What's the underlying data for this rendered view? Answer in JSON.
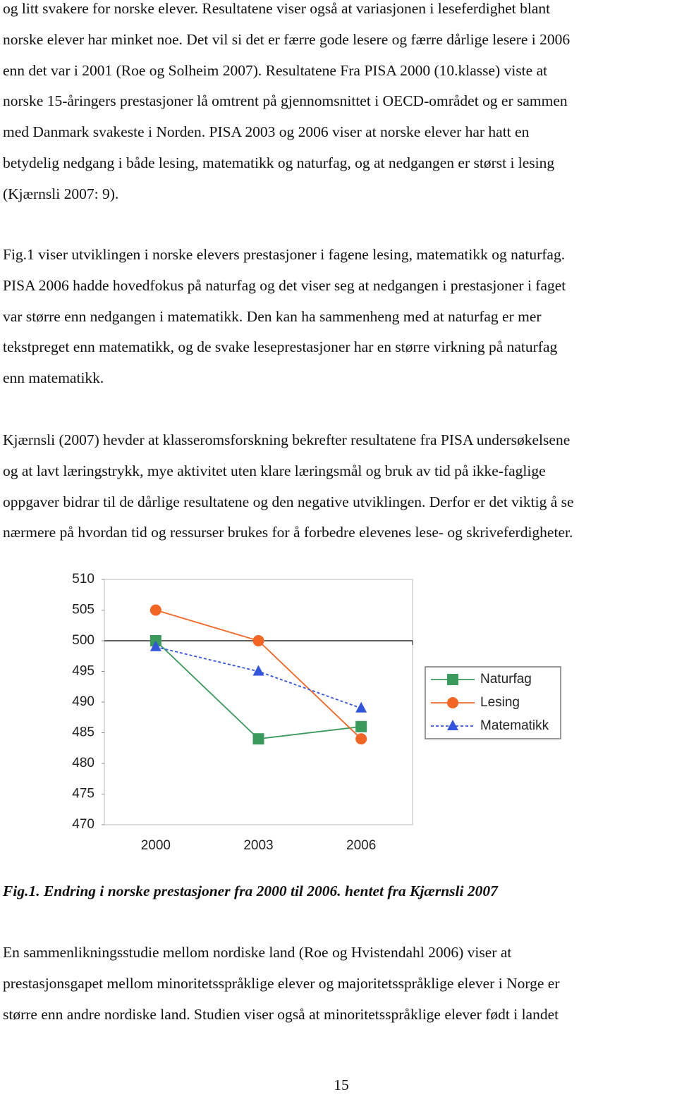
{
  "paragraphs": [
    {
      "lines": [
        "og litt svakere for norske elever. Resultatene viser også at variasjonen i leseferdighet blant",
        "norske elever har minket noe. Det vil si det er færre gode lesere og færre dårlige lesere i 2006",
        "enn det var i 2001 (Roe og Solheim 2007). Resultatene Fra PISA 2000 (10.klasse) viste at",
        "norske 15-åringers prestasjoner lå omtrent på gjennomsnittet i OECD-området og er sammen",
        "med Danmark svakeste i Norden. PISA 2003 og 2006 viser at norske elever har hatt en",
        "betydelig nedgang i både lesing, matematikk og naturfag, og at nedgangen er størst i lesing",
        "(Kjærnsli 2007: 9)."
      ]
    },
    {
      "lines": [
        "Fig.1 viser utviklingen i norske elevers prestasjoner i fagene lesing, matematikk og naturfag.",
        "PISA 2006 hadde hovedfokus på naturfag og det viser seg at nedgangen i prestasjoner i faget",
        "var større enn nedgangen i matematikk. Den kan ha sammenheng med at naturfag er mer",
        "tekstpreget enn matematikk, og de svake leseprestasjoner har en større virkning på naturfag",
        "enn matematikk."
      ]
    },
    {
      "lines": [
        "Kjærnsli (2007) hevder at klasseromsforskning bekrefter resultatene fra PISA undersøkelsene",
        "og at lavt læringstrykk, mye aktivitet uten klare læringsmål og bruk av tid på ikke-faglige",
        "oppgaver bidrar til de dårlige resultatene og den negative utviklingen. Derfor er det viktig å se",
        "nærmere på hvordan tid og ressurser brukes for å forbedre elevenes lese- og skriveferdigheter."
      ]
    }
  ],
  "chart_data": {
    "type": "line",
    "categories": [
      "2000",
      "2003",
      "2006"
    ],
    "series": [
      {
        "name": "Naturfag",
        "color": "#3a9a5c",
        "marker": "square",
        "values": [
          500,
          484,
          486
        ]
      },
      {
        "name": "Lesing",
        "color": "#f26522",
        "marker": "circle",
        "values": [
          505,
          500,
          484
        ]
      },
      {
        "name": "Matematikk",
        "color": "#3355dd",
        "marker": "triangle",
        "dashed": true,
        "values": [
          499,
          495,
          489
        ]
      }
    ],
    "ylim": [
      470,
      510
    ],
    "yticks": [
      470,
      475,
      480,
      485,
      490,
      495,
      500,
      505,
      510
    ],
    "reference_line": 500,
    "legend": "right"
  },
  "caption": "Fig.1. Endring i norske prestasjoner fra 2000 til 2006. hentet fra Kjærnsli 2007",
  "after": {
    "lines": [
      "En sammenlikningsstudie mellom nordiske land (Roe og Hvistendahl 2006) viser at",
      "prestasjonsgapet mellom minoritetsspråklige elever og majoritetsspråklige elever i Norge er",
      "større enn andre nordiske land. Studien viser også at minoritetsspråklige elever født i landet"
    ]
  },
  "page_number": "15"
}
